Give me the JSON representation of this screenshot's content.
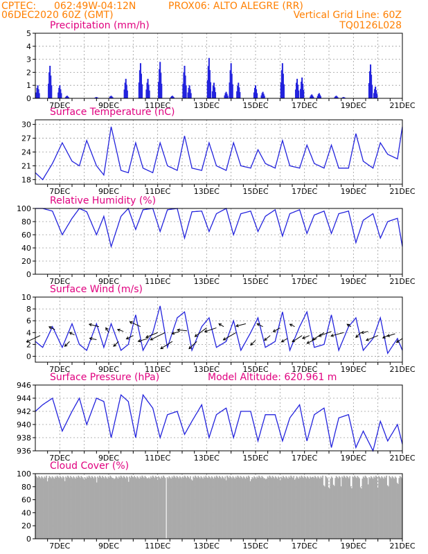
{
  "header": {
    "line1_left": "CPTEC:",
    "line1_coords": "062:49W-04:12N",
    "line1_station": "PROX06: ALTO ALEGRE (RR)",
    "line2_left": "06DEC2020 60Z (GMT)",
    "line2_right": "Vertical Grid Line: 60Z",
    "line3_right": "TQ0126L028"
  },
  "colors": {
    "header": "#ff7f00",
    "title": "#e0007f",
    "series": "#2222dd",
    "cloud": "#aaaaaa"
  },
  "day_labels": [
    "7DEC",
    "9DEC",
    "11DEC",
    "13DEC",
    "15DEC",
    "17DEC",
    "19DEC",
    "21DEC"
  ],
  "model_altitude": "Model Altitude: 620.961 m",
  "chart_data": [
    {
      "type": "bar",
      "title": "Precipitation (mm/h)",
      "ylim": [
        0,
        5
      ],
      "yticks": [
        "0",
        "1",
        "2",
        "3",
        "4",
        "5"
      ],
      "peaks_day_value": [
        [
          6.1,
          1.0
        ],
        [
          6.6,
          2.5
        ],
        [
          7.0,
          1.0
        ],
        [
          7.3,
          0.2
        ],
        [
          8.5,
          0.1
        ],
        [
          9.1,
          0.2
        ],
        [
          9.7,
          1.5
        ],
        [
          10.3,
          2.7
        ],
        [
          10.6,
          1.5
        ],
        [
          11.1,
          2.8
        ],
        [
          11.6,
          0.2
        ],
        [
          12.1,
          2.5
        ],
        [
          12.3,
          1.0
        ],
        [
          13.1,
          3.1
        ],
        [
          13.3,
          1.2
        ],
        [
          13.8,
          0.5
        ],
        [
          14.0,
          2.7
        ],
        [
          14.3,
          1.2
        ],
        [
          15.0,
          1.0
        ],
        [
          15.3,
          0.5
        ],
        [
          16.1,
          2.7
        ],
        [
          16.7,
          1.5
        ],
        [
          16.9,
          1.6
        ],
        [
          17.3,
          0.3
        ],
        [
          17.6,
          0.4
        ],
        [
          18.3,
          0.2
        ],
        [
          18.6,
          0.1
        ],
        [
          19.7,
          2.6
        ],
        [
          19.9,
          0.9
        ]
      ]
    },
    {
      "type": "line",
      "title": "Surface Temperature (nC)",
      "ylim": [
        17,
        31
      ],
      "yticks": [
        "18",
        "21",
        "24",
        "27",
        "30"
      ],
      "x_days": [
        6.0,
        6.3,
        6.7,
        7.1,
        7.5,
        7.8,
        8.1,
        8.5,
        8.8,
        9.1,
        9.5,
        9.8,
        10.1,
        10.4,
        10.8,
        11.1,
        11.4,
        11.8,
        12.1,
        12.4,
        12.8,
        13.1,
        13.4,
        13.8,
        14.1,
        14.4,
        14.8,
        15.1,
        15.4,
        15.8,
        16.1,
        16.4,
        16.8,
        17.1,
        17.4,
        17.8,
        18.1,
        18.4,
        18.8,
        19.1,
        19.4,
        19.8,
        20.1,
        20.4,
        20.8,
        21.0
      ],
      "values": [
        19.5,
        18.0,
        21.5,
        26.0,
        22.0,
        21.0,
        26.5,
        21.0,
        19.0,
        29.5,
        20.0,
        19.5,
        26.0,
        20.5,
        19.5,
        26.0,
        21.0,
        20.0,
        27.5,
        20.5,
        20.0,
        26.0,
        21.0,
        20.0,
        26.0,
        21.0,
        20.5,
        24.5,
        21.5,
        20.5,
        26.5,
        21.0,
        20.5,
        25.5,
        21.5,
        20.5,
        25.5,
        20.5,
        20.5,
        28.0,
        22.0,
        20.5,
        26.0,
        23.5,
        22.5,
        29.5
      ]
    },
    {
      "type": "line",
      "title": "Relative Humidity (%)",
      "ylim": [
        0,
        100
      ],
      "yticks": [
        "0",
        "20",
        "40",
        "60",
        "80",
        "100"
      ],
      "x_days": [
        6.0,
        6.3,
        6.7,
        7.1,
        7.5,
        7.8,
        8.1,
        8.5,
        8.8,
        9.1,
        9.5,
        9.8,
        10.1,
        10.4,
        10.8,
        11.1,
        11.4,
        11.8,
        12.1,
        12.4,
        12.8,
        13.1,
        13.4,
        13.8,
        14.1,
        14.4,
        14.8,
        15.1,
        15.4,
        15.8,
        16.1,
        16.4,
        16.8,
        17.1,
        17.4,
        17.8,
        18.1,
        18.4,
        18.8,
        19.1,
        19.4,
        19.8,
        20.1,
        20.4,
        20.8,
        21.0
      ],
      "values": [
        100,
        100,
        96,
        60,
        85,
        100,
        95,
        60,
        88,
        42,
        88,
        100,
        68,
        98,
        100,
        65,
        98,
        100,
        55,
        95,
        96,
        65,
        92,
        100,
        60,
        92,
        96,
        65,
        88,
        98,
        58,
        92,
        98,
        62,
        90,
        96,
        62,
        92,
        96,
        48,
        82,
        92,
        55,
        80,
        85,
        42
      ]
    },
    {
      "type": "line",
      "title": "Surface Wind (m/s)",
      "ylim": [
        -1,
        10
      ],
      "yticks": [
        "0",
        "2",
        "4",
        "6",
        "8",
        "10"
      ],
      "x_days": [
        6.0,
        6.3,
        6.7,
        7.1,
        7.5,
        7.8,
        8.1,
        8.5,
        8.8,
        9.1,
        9.5,
        9.8,
        10.1,
        10.4,
        10.8,
        11.1,
        11.4,
        11.8,
        12.1,
        12.4,
        12.8,
        13.1,
        13.4,
        13.8,
        14.1,
        14.4,
        14.8,
        15.1,
        15.4,
        15.8,
        16.1,
        16.4,
        16.8,
        17.1,
        17.4,
        17.8,
        18.1,
        18.4,
        18.8,
        19.1,
        19.4,
        19.8,
        20.1,
        20.4,
        20.8,
        21.0
      ],
      "values": [
        2.5,
        1.5,
        5.0,
        1.5,
        5.5,
        2.0,
        1.0,
        5.5,
        1.5,
        5.5,
        1.0,
        2.0,
        7.0,
        1.0,
        4.0,
        8.5,
        1.5,
        6.5,
        7.5,
        1.0,
        5.0,
        6.5,
        1.5,
        2.5,
        6.0,
        1.0,
        4.0,
        6.5,
        1.5,
        2.5,
        7.5,
        1.0,
        5.0,
        7.5,
        1.5,
        2.0,
        7.0,
        1.0,
        5.0,
        6.5,
        1.0,
        3.0,
        6.5,
        0.5,
        3.0,
        1.0
      ],
      "arrows": [
        [
          6.2,
          3.5,
          -1.4,
          -1.3
        ],
        [
          6.8,
          4.5,
          -0.6,
          0.6
        ],
        [
          7.4,
          2.5,
          -0.5,
          -1.0
        ],
        [
          7.6,
          3.6,
          -0.5,
          0.5
        ],
        [
          8.5,
          2.8,
          -0.7,
          0.3
        ],
        [
          8.6,
          5.0,
          -1.0,
          0.5
        ],
        [
          9.0,
          4.0,
          -0.3,
          1.0
        ],
        [
          9.4,
          2.5,
          -0.5,
          -1.0
        ],
        [
          9.6,
          4.2,
          -0.6,
          0.4
        ],
        [
          10.0,
          3.5,
          -0.7,
          -0.7
        ],
        [
          10.3,
          5.0,
          -1.1,
          1.0
        ],
        [
          10.6,
          3.0,
          -1.0,
          -0.6
        ],
        [
          11.0,
          4.0,
          -1.2,
          -1.0
        ],
        [
          11.3,
          4.0,
          -1.5,
          -1.5
        ],
        [
          11.6,
          2.5,
          -1.2,
          -1.5
        ],
        [
          11.9,
          4.2,
          -0.8,
          -0.5
        ],
        [
          12.2,
          4.3,
          -1.0,
          0.2
        ],
        [
          12.6,
          2.5,
          -0.8,
          -1.5
        ],
        [
          13.0,
          4.8,
          -1.2,
          -1.8
        ],
        [
          13.4,
          4.8,
          -1.2,
          -0.8
        ],
        [
          13.7,
          5.0,
          -0.5,
          0.6
        ],
        [
          14.2,
          4.0,
          -1.3,
          -1.5
        ],
        [
          14.6,
          5.5,
          -1.0,
          -0.5
        ],
        [
          15.0,
          2.7,
          -0.5,
          -1.0
        ],
        [
          15.3,
          5.0,
          -0.6,
          0.6
        ],
        [
          15.6,
          3.5,
          -0.6,
          -1.0
        ],
        [
          16.0,
          4.8,
          -0.7,
          -0.8
        ],
        [
          16.3,
          3.0,
          -0.6,
          -0.7
        ],
        [
          16.6,
          5.0,
          -0.5,
          0.5
        ],
        [
          16.9,
          3.5,
          -1.0,
          -1.3
        ],
        [
          17.2,
          3.5,
          -0.7,
          -0.6
        ],
        [
          17.5,
          3.0,
          -1.0,
          -1.0
        ],
        [
          17.8,
          4.0,
          -1.2,
          -1.5
        ],
        [
          18.1,
          4.2,
          -1.3,
          -1.0
        ],
        [
          18.6,
          4.0,
          -1.3,
          -0.7
        ],
        [
          18.9,
          5.0,
          -0.4,
          0.5
        ],
        [
          19.3,
          4.0,
          -0.5,
          -1.0
        ],
        [
          19.6,
          4.2,
          -0.7,
          -0.3
        ],
        [
          20.0,
          3.5,
          -1.2,
          -1.0
        ],
        [
          20.4,
          3.5,
          -0.5,
          -0.5
        ],
        [
          20.7,
          3.8,
          -0.8,
          -0.5
        ],
        [
          21.0,
          3.0,
          -0.6,
          -0.8
        ]
      ]
    },
    {
      "type": "line",
      "title": "Surface Pressure (hPa)",
      "ylim": [
        936,
        946
      ],
      "yticks": [
        "936",
        "938",
        "940",
        "942",
        "944",
        "946"
      ],
      "x_days": [
        6.0,
        6.3,
        6.7,
        7.1,
        7.5,
        7.8,
        8.1,
        8.5,
        8.8,
        9.1,
        9.5,
        9.8,
        10.1,
        10.4,
        10.8,
        11.1,
        11.4,
        11.8,
        12.1,
        12.4,
        12.8,
        13.1,
        13.4,
        13.8,
        14.1,
        14.4,
        14.8,
        15.1,
        15.4,
        15.8,
        16.1,
        16.4,
        16.8,
        17.1,
        17.4,
        17.8,
        18.1,
        18.4,
        18.8,
        19.1,
        19.4,
        19.8,
        20.1,
        20.4,
        20.8,
        21.0
      ],
      "values": [
        942.0,
        943.0,
        944.0,
        939.0,
        942.0,
        944.0,
        940.0,
        944.0,
        943.5,
        938.0,
        944.5,
        943.5,
        938.0,
        944.5,
        942.5,
        938.0,
        941.5,
        942.0,
        938.5,
        940.5,
        943.0,
        938.0,
        941.5,
        942.5,
        938.0,
        942.0,
        942.0,
        937.5,
        941.5,
        941.5,
        937.5,
        941.0,
        943.0,
        937.5,
        941.5,
        942.5,
        936.5,
        941.0,
        941.5,
        936.5,
        939.0,
        936.0,
        940.5,
        937.5,
        940.0,
        937.0
      ]
    },
    {
      "type": "bar",
      "title": "Cloud Cover (%)",
      "ylim": [
        0,
        100
      ],
      "yticks": [
        "0",
        "20",
        "40",
        "60",
        "80",
        "100"
      ],
      "baseline_value": 97,
      "dips_day_value": [
        [
          6.5,
          90
        ],
        [
          7.2,
          93
        ],
        [
          8.0,
          92
        ],
        [
          8.5,
          91
        ],
        [
          9.2,
          94
        ],
        [
          9.8,
          92
        ],
        [
          10.6,
          94
        ],
        [
          11.0,
          95
        ],
        [
          11.35,
          0
        ],
        [
          12.4,
          94
        ],
        [
          13.0,
          96
        ],
        [
          13.8,
          93
        ],
        [
          14.8,
          92
        ],
        [
          15.4,
          94
        ],
        [
          16.0,
          90
        ],
        [
          16.6,
          93
        ],
        [
          17.3,
          95
        ],
        [
          17.8,
          84
        ],
        [
          18.0,
          80
        ],
        [
          18.2,
          83
        ],
        [
          18.5,
          85
        ],
        [
          18.9,
          82
        ],
        [
          19.3,
          80
        ],
        [
          19.6,
          84
        ],
        [
          20.0,
          82
        ],
        [
          20.4,
          84
        ],
        [
          20.8,
          86
        ]
      ]
    }
  ]
}
